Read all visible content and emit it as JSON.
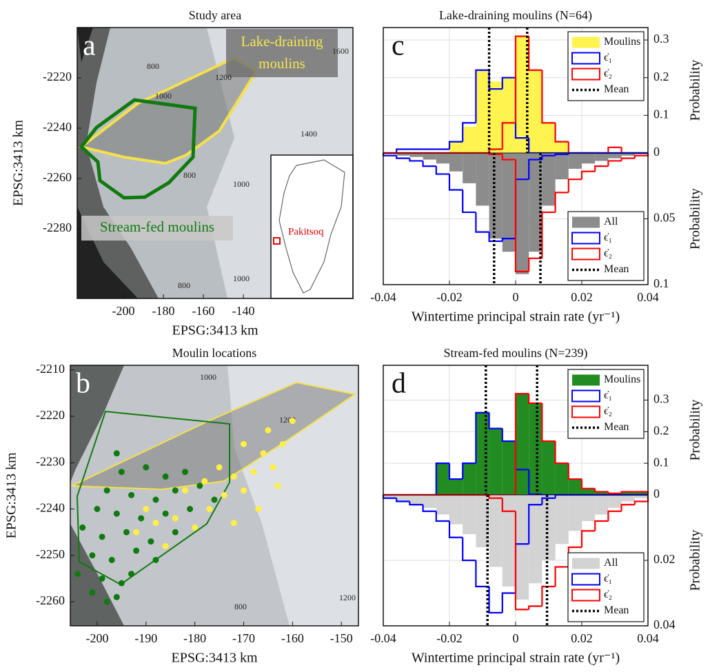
{
  "chart_data": [
    {
      "type": "map",
      "panel": "a",
      "title": "Study area",
      "xlabel": "EPSG:3413 km",
      "ylabel": "EPSG:3413 km",
      "xlim": [
        -223.1,
        -85.2
      ],
      "ylim": [
        -2307.7,
        -2200
      ],
      "xticks": [
        -200,
        -180,
        -160,
        -140
      ],
      "yticks": [
        -2220,
        -2240,
        -2260,
        -2280
      ],
      "lake_label": [
        "Lake-draining",
        "moulins"
      ],
      "stream_label": "Stream-fed moulins",
      "inset_label": "Pakitsoq",
      "contour_labels": [
        "800",
        "1000",
        "1200",
        "1600",
        "1400",
        "800",
        "1000",
        "800",
        "1000"
      ]
    },
    {
      "type": "map",
      "panel": "b",
      "title": "Moulin locations",
      "xlabel": "EPSG:3413 km",
      "ylabel": "EPSG:3413 km",
      "xlim": [
        -205.5,
        -146.5
      ],
      "ylim": [
        -2265.2,
        -2209
      ],
      "xticks": [
        -200,
        -190,
        -180,
        -170,
        -160,
        -150
      ],
      "yticks": [
        -2210,
        -2220,
        -2230,
        -2240,
        -2250,
        -2260
      ],
      "contour_labels": [
        "1000",
        "1200",
        "1200",
        "800"
      ],
      "points": [
        {
          "color": "#0f7a0f",
          "x": [
            -196,
            -195,
            -190,
            -186,
            -182,
            -198,
            -193,
            -188,
            -184,
            -179,
            -200,
            -196,
            -191,
            -186,
            -181,
            -176,
            -203,
            -199,
            -194,
            -189,
            -184,
            -201,
            -197,
            -192,
            -204,
            -199,
            -195,
            -201,
            -196,
            -198,
            -193,
            -188
          ],
          "y": [
            -2228,
            -2232,
            -2231,
            -2233,
            -2232,
            -2236,
            -2237,
            -2238,
            -2236,
            -2235,
            -2240,
            -2241,
            -2242,
            -2241,
            -2240,
            -2238,
            -2244,
            -2246,
            -2245,
            -2247,
            -2245,
            -2250,
            -2251,
            -2249,
            -2254,
            -2255,
            -2256,
            -2258,
            -2259,
            -2260,
            -2254,
            -2251
          ]
        },
        {
          "color": "#ffee44",
          "x": [
            -192,
            -188,
            -184,
            -180,
            -177,
            -174,
            -178,
            -172,
            -170,
            -168,
            -166,
            -164,
            -162,
            -160,
            -163,
            -167,
            -172,
            -186,
            -190,
            -182,
            -175,
            -165,
            -170
          ],
          "y": [
            -2245,
            -2243,
            -2242,
            -2244,
            -2240,
            -2237,
            -2234,
            -2233,
            -2236,
            -2232,
            -2228,
            -2231,
            -2226,
            -2221,
            -2235,
            -2240,
            -2243,
            -2248,
            -2240,
            -2236,
            -2231,
            -2223,
            -2226
          ]
        }
      ]
    },
    {
      "type": "histogram",
      "panel": "c",
      "title": "Lake-draining moulins (N=64)",
      "xlabel": "Wintertime principal strain rate (yr⁻¹)",
      "xlim": [
        -0.04,
        0.04
      ],
      "xticks": [
        -0.04,
        -0.02,
        0,
        0.02,
        0.04
      ],
      "grid": true,
      "bins": [
        -0.04,
        -0.036,
        -0.032,
        -0.028,
        -0.024,
        -0.02,
        -0.016,
        -0.012,
        -0.008,
        -0.004,
        0,
        0.004,
        0.008,
        0.012,
        0.016,
        0.02,
        0.024,
        0.028,
        0.032,
        0.036,
        0.04
      ],
      "upper": {
        "ylabel": "Probability",
        "ylim": [
          0,
          0.333
        ],
        "yticks": [
          0,
          0.1,
          0.2,
          0.3
        ],
        "legend": "upper right",
        "mean_label": "Mean",
        "means": [
          -0.008,
          0.0035
        ],
        "series": [
          {
            "name": "Moulins",
            "color": "#fff34f",
            "fill": true,
            "values": [
              0,
              0,
              0,
              0,
              0,
              0.03,
              0.07,
              0.22,
              0.19,
              0.2,
              0.31,
              0.22,
              0.08,
              0.03,
              0,
              0,
              0,
              0,
              0,
              0
            ]
          },
          {
            "name": "ϵ̇₁",
            "color": "#0000ff",
            "values": [
              0,
              0.01,
              0.01,
              0.01,
              0.01,
              0.03,
              0.08,
              0.22,
              0.17,
              0.2,
              0.04,
              0,
              0,
              0,
              0,
              0,
              0,
              0,
              0,
              0
            ]
          },
          {
            "name": "ϵ̇₂",
            "color": "#ff0000",
            "values": [
              0,
              0,
              0,
              0,
              0,
              0,
              0,
              0,
              0.01,
              0.08,
              0.31,
              0.22,
              0.08,
              0.03,
              0,
              0,
              0,
              0.015,
              0,
              0
            ]
          }
        ]
      },
      "lower": {
        "ylabel": "Probability",
        "ylim": [
          0,
          0.1
        ],
        "yticks": [
          0.05,
          0.1
        ],
        "legend": "lower right",
        "mean_label": "Mean",
        "means": [
          -0.0065,
          0.0075
        ],
        "series": [
          {
            "name": "All",
            "color": "#8c8c8c",
            "fill": true,
            "values": [
              0.001,
              0.002,
              0.003,
              0.005,
              0.008,
              0.014,
              0.023,
              0.04,
              0.065,
              0.075,
              0.092,
              0.075,
              0.04,
              0.02,
              0.012,
              0.008,
              0.006,
              0.004,
              0.002,
              0.001
            ]
          },
          {
            "name": "ϵ̇₁",
            "color": "#0000ff",
            "values": [
              0.002,
              0.004,
              0.006,
              0.01,
              0.016,
              0.028,
              0.045,
              0.06,
              0.067,
              0.065,
              0.02,
              0.005,
              0.002,
              0.001,
              0,
              0,
              0,
              0,
              0,
              0
            ]
          },
          {
            "name": "ϵ̇₂",
            "color": "#ff0000",
            "values": [
              0,
              0,
              0,
              0,
              0,
              0,
              0,
              0,
              0.001,
              0.005,
              0.09,
              0.08,
              0.045,
              0.03,
              0.02,
              0.014,
              0.01,
              0.006,
              0.004,
              0.002
            ]
          }
        ]
      }
    },
    {
      "type": "histogram",
      "panel": "d",
      "title": "Stream-fed moulins (N=239)",
      "xlabel": "Wintertime principal strain rate (yr⁻¹)",
      "xlim": [
        -0.04,
        0.04
      ],
      "xticks": [
        -0.04,
        -0.02,
        0,
        0.02,
        0.04
      ],
      "grid": true,
      "bins": [
        -0.04,
        -0.036,
        -0.032,
        -0.028,
        -0.024,
        -0.02,
        -0.016,
        -0.012,
        -0.008,
        -0.004,
        0,
        0.004,
        0.008,
        0.012,
        0.016,
        0.02,
        0.024,
        0.028,
        0.032,
        0.036,
        0.04
      ],
      "upper": {
        "ylabel": "Probability",
        "ylim": [
          0,
          0.41
        ],
        "yticks": [
          0,
          0.1,
          0.2,
          0.3
        ],
        "legend": "upper right",
        "mean_label": "Mean",
        "means": [
          -0.009,
          0.0065
        ],
        "series": [
          {
            "name": "Moulins",
            "color": "#228b22",
            "fill": true,
            "values": [
              0,
              0,
              0,
              0,
              0.1,
              0.05,
              0.1,
              0.26,
              0.21,
              0.17,
              0.32,
              0.29,
              0.17,
              0.1,
              0.05,
              0.02,
              0.01,
              0.005,
              0.01,
              0.01
            ]
          },
          {
            "name": "ϵ̇₁",
            "color": "#0000ff",
            "values": [
              0,
              0,
              0,
              0,
              0.1,
              0.05,
              0.1,
              0.26,
              0.21,
              0.17,
              0.08,
              0.002,
              0,
              0,
              0,
              0,
              0,
              0,
              0,
              0
            ]
          },
          {
            "name": "ϵ̇₂",
            "color": "#ff0000",
            "values": [
              0,
              0,
              0,
              0,
              0,
              0,
              0,
              0,
              0,
              0,
              0.32,
              0.29,
              0.17,
              0.1,
              0.05,
              0.02,
              0.01,
              0.005,
              0.01,
              0.01
            ]
          }
        ]
      },
      "lower": {
        "ylabel": "Probability",
        "ylim": [
          0,
          0.04
        ],
        "yticks": [
          0.02,
          0.04
        ],
        "legend": "lower right",
        "mean_label": "Mean",
        "means": [
          -0.0085,
          0.0095
        ],
        "series": [
          {
            "name": "All",
            "color": "#d3d3d3",
            "fill": true,
            "values": [
              0.001,
              0.002,
              0.003,
              0.004,
              0.006,
              0.009,
              0.012,
              0.016,
              0.022,
              0.028,
              0.032,
              0.027,
              0.02,
              0.015,
              0.011,
              0.008,
              0.006,
              0.004,
              0.002,
              0.001
            ]
          },
          {
            "name": "ϵ̇₁",
            "color": "#0000ff",
            "values": [
              0.001,
              0.002,
              0.003,
              0.005,
              0.008,
              0.013,
              0.02,
              0.028,
              0.036,
              0.03,
              0.015,
              0.003,
              0.001,
              0,
              0,
              0,
              0,
              0,
              0,
              0
            ]
          },
          {
            "name": "ϵ̇₂",
            "color": "#ff0000",
            "values": [
              0,
              0,
              0,
              0,
              0,
              0,
              0,
              0,
              0.001,
              0.005,
              0.035,
              0.034,
              0.028,
              0.022,
              0.016,
              0.011,
              0.008,
              0.005,
              0.003,
              0.002
            ]
          }
        ]
      }
    }
  ]
}
